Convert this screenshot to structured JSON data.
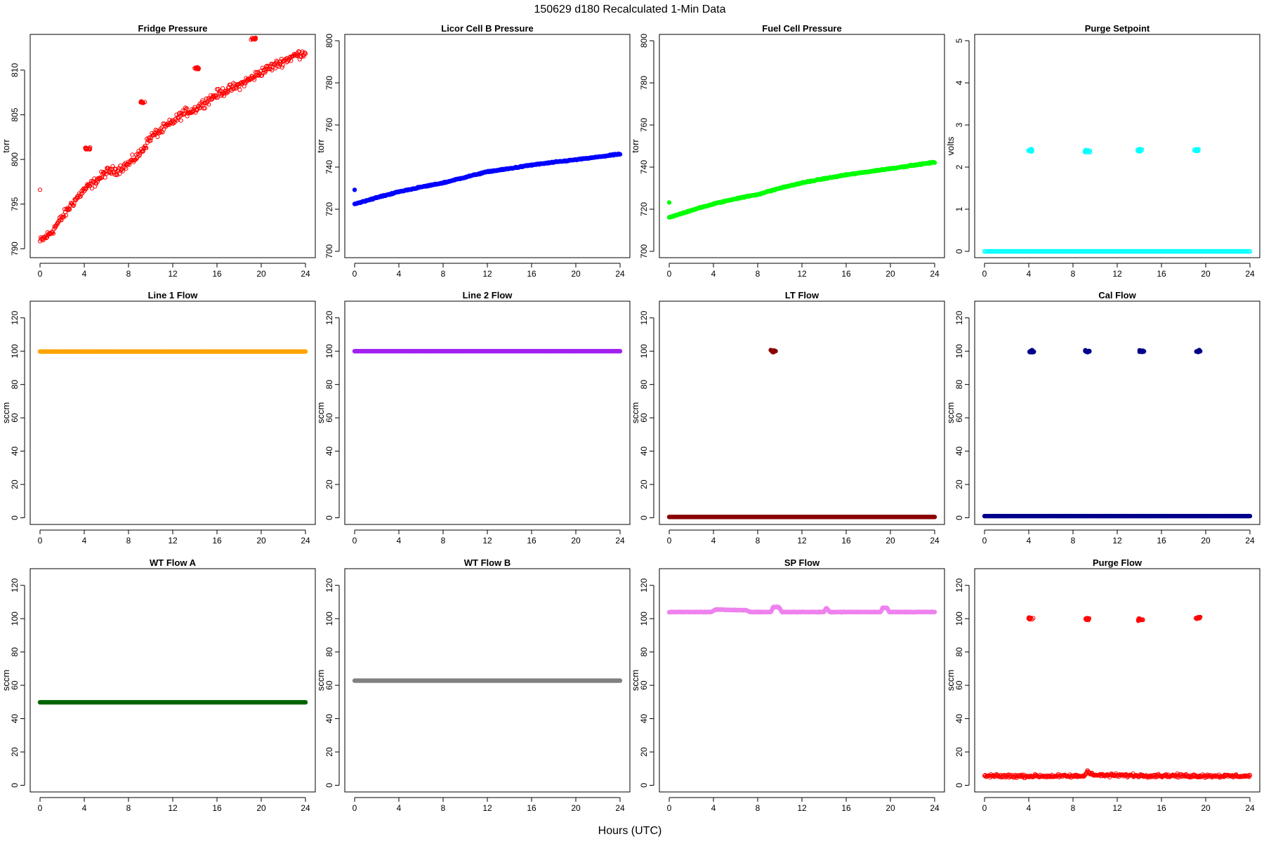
{
  "page": {
    "title": "150629    d180    Recalculated 1-Min Data",
    "xlabel": "Hours (UTC)"
  },
  "chart_data": [
    {
      "type": "scatter",
      "title": "Fridge Pressure",
      "ylabel": "torr",
      "color": "#ff0000",
      "xlim": [
        0,
        24
      ],
      "ylim": [
        789,
        814
      ],
      "yticks": [
        790,
        795,
        800,
        805,
        810
      ],
      "xticks": [
        0,
        4,
        8,
        12,
        16,
        20,
        24
      ],
      "curve": [
        [
          0,
          790.8
        ],
        [
          1,
          791.8
        ],
        [
          2,
          793.5
        ],
        [
          3,
          795.2
        ],
        [
          4,
          796.6
        ],
        [
          5,
          797.5
        ],
        [
          6,
          798.6
        ],
        [
          7,
          798.8
        ],
        [
          8,
          799.5
        ],
        [
          9,
          800.6
        ],
        [
          10,
          802.5
        ],
        [
          11,
          803.3
        ],
        [
          12,
          804.2
        ],
        [
          13,
          805.2
        ],
        [
          14,
          805.6
        ],
        [
          15,
          806.5
        ],
        [
          16,
          807.3
        ],
        [
          17,
          807.8
        ],
        [
          18,
          808.3
        ],
        [
          19,
          809.0
        ],
        [
          20,
          809.8
        ],
        [
          21,
          810.4
        ],
        [
          22,
          811.0
        ],
        [
          23,
          811.6
        ],
        [
          24,
          812.0
        ]
      ],
      "spread": 0.6,
      "clusters": [
        [
          4.3,
          801.2
        ],
        [
          9.3,
          806.4
        ],
        [
          14.2,
          810.2
        ],
        [
          19.3,
          813.5
        ]
      ],
      "outliers": [
        [
          0,
          796.6
        ]
      ],
      "outline": true,
      "size": 2.6
    },
    {
      "type": "scatter",
      "title": "Licor Cell B Pressure",
      "ylabel": "torr",
      "color": "#0000ff",
      "xlim": [
        0,
        24
      ],
      "ylim": [
        697,
        803
      ],
      "yticks": [
        700,
        720,
        740,
        760,
        780,
        800
      ],
      "xticks": [
        0,
        4,
        8,
        12,
        16,
        20,
        24
      ],
      "curve": [
        [
          0,
          722.5
        ],
        [
          2,
          725.5
        ],
        [
          4,
          728.3
        ],
        [
          6,
          730.5
        ],
        [
          8,
          732.5
        ],
        [
          10,
          735.2
        ],
        [
          12,
          737.8
        ],
        [
          14,
          739.3
        ],
        [
          16,
          741.0
        ],
        [
          18,
          742.3
        ],
        [
          20,
          743.5
        ],
        [
          22,
          744.8
        ],
        [
          24,
          746.2
        ]
      ],
      "spread": 0.3,
      "clusters": [],
      "outliers": [
        [
          0,
          729.2
        ]
      ],
      "outline": false,
      "size": 2.8
    },
    {
      "type": "scatter",
      "title": "Fuel Cell Pressure",
      "ylabel": "torr",
      "color": "#00ff00",
      "xlim": [
        0,
        24
      ],
      "ylim": [
        697,
        803
      ],
      "yticks": [
        700,
        720,
        740,
        760,
        780,
        800
      ],
      "xticks": [
        0,
        4,
        8,
        12,
        16,
        20,
        24
      ],
      "curve": [
        [
          0,
          716.0
        ],
        [
          2,
          719.5
        ],
        [
          4,
          722.5
        ],
        [
          6,
          725.0
        ],
        [
          8,
          727.0
        ],
        [
          10,
          730.0
        ],
        [
          12,
          732.5
        ],
        [
          14,
          734.5
        ],
        [
          16,
          736.3
        ],
        [
          18,
          737.8
        ],
        [
          20,
          739.3
        ],
        [
          22,
          740.8
        ],
        [
          24,
          742.3
        ]
      ],
      "spread": 0.3,
      "clusters": [],
      "outliers": [
        [
          0,
          723.2
        ]
      ],
      "outline": false,
      "size": 2.8
    },
    {
      "type": "scatter",
      "title": "Purge Setpoint",
      "ylabel": "volts",
      "color": "#00ffff",
      "xlim": [
        0,
        24
      ],
      "ylim": [
        -0.15,
        5.15
      ],
      "yticks": [
        0,
        1,
        2,
        3,
        4,
        5
      ],
      "xticks": [
        0,
        4,
        8,
        12,
        16,
        20,
        24
      ],
      "curve": [
        [
          0,
          0
        ],
        [
          24,
          0
        ]
      ],
      "spread": 0,
      "clusters": [
        [
          4.1,
          2.4
        ],
        [
          9.3,
          2.38
        ],
        [
          14.0,
          2.4
        ],
        [
          19.2,
          2.4
        ]
      ],
      "outliers": [],
      "outline": true,
      "size": 2.8
    },
    {
      "type": "scatter",
      "title": "Line 1 Flow",
      "ylabel": "sccm",
      "color": "#ffa500",
      "xlim": [
        0,
        24
      ],
      "ylim": [
        -4,
        130
      ],
      "yticks": [
        0,
        20,
        40,
        60,
        80,
        100,
        120
      ],
      "xticks": [
        0,
        4,
        8,
        12,
        16,
        20,
        24
      ],
      "curve": [
        [
          0,
          99.8
        ],
        [
          24,
          99.8
        ]
      ],
      "spread": 0,
      "clusters": [],
      "outliers": [],
      "outline": false,
      "size": 2.8
    },
    {
      "type": "scatter",
      "title": "Line 2 Flow",
      "ylabel": "sccm",
      "color": "#a020f0",
      "xlim": [
        0,
        24
      ],
      "ylim": [
        -4,
        130
      ],
      "yticks": [
        0,
        20,
        40,
        60,
        80,
        100,
        120
      ],
      "xticks": [
        0,
        4,
        8,
        12,
        16,
        20,
        24
      ],
      "curve": [
        [
          0,
          100
        ],
        [
          24,
          100
        ]
      ],
      "spread": 0,
      "clusters": [],
      "outliers": [],
      "outline": false,
      "size": 2.8
    },
    {
      "type": "scatter",
      "title": "LT Flow",
      "ylabel": "sccm",
      "color": "#8b0000",
      "xlim": [
        0,
        24
      ],
      "ylim": [
        -4,
        130
      ],
      "yticks": [
        0,
        20,
        40,
        60,
        80,
        100,
        120
      ],
      "xticks": [
        0,
        4,
        8,
        12,
        16,
        20,
        24
      ],
      "curve": [
        [
          0,
          0.5
        ],
        [
          24,
          0.5
        ]
      ],
      "spread": 0,
      "clusters": [
        [
          9.4,
          100
        ]
      ],
      "outliers": [],
      "outline": false,
      "size": 2.8
    },
    {
      "type": "scatter",
      "title": "Cal Flow",
      "ylabel": "sccm",
      "color": "#00008b",
      "xlim": [
        0,
        24
      ],
      "ylim": [
        -4,
        130
      ],
      "yticks": [
        0,
        20,
        40,
        60,
        80,
        100,
        120
      ],
      "xticks": [
        0,
        4,
        8,
        12,
        16,
        20,
        24
      ],
      "curve": [
        [
          0,
          1
        ],
        [
          24,
          1
        ]
      ],
      "spread": 0,
      "clusters": [
        [
          4.3,
          100
        ],
        [
          9.3,
          100
        ],
        [
          14.2,
          100
        ],
        [
          19.3,
          100
        ]
      ],
      "outliers": [],
      "outline": false,
      "size": 2.8
    },
    {
      "type": "scatter",
      "title": "WT Flow A",
      "ylabel": "sccm",
      "color": "#006400",
      "xlim": [
        0,
        24
      ],
      "ylim": [
        -4,
        130
      ],
      "yticks": [
        0,
        20,
        40,
        60,
        80,
        100,
        120
      ],
      "xticks": [
        0,
        4,
        8,
        12,
        16,
        20,
        24
      ],
      "curve": [
        [
          0,
          49.8
        ],
        [
          24,
          49.8
        ]
      ],
      "spread": 0,
      "clusters": [],
      "outliers": [],
      "outline": false,
      "size": 2.8
    },
    {
      "type": "scatter",
      "title": "WT Flow B",
      "ylabel": "sccm",
      "color": "#808080",
      "xlim": [
        0,
        24
      ],
      "ylim": [
        -4,
        130
      ],
      "yticks": [
        0,
        20,
        40,
        60,
        80,
        100,
        120
      ],
      "xticks": [
        0,
        4,
        8,
        12,
        16,
        20,
        24
      ],
      "curve": [
        [
          0,
          62.8
        ],
        [
          24,
          62.8
        ]
      ],
      "spread": 0,
      "clusters": [],
      "outliers": [],
      "outline": false,
      "size": 2.8
    },
    {
      "type": "scatter",
      "title": "SP Flow",
      "ylabel": "sccm",
      "color": "#ee82ee",
      "xlim": [
        0,
        24
      ],
      "ylim": [
        -4,
        130
      ],
      "yticks": [
        0,
        20,
        40,
        60,
        80,
        100,
        120
      ],
      "xticks": [
        0,
        4,
        8,
        12,
        16,
        20,
        24
      ],
      "curve": [
        [
          0,
          104
        ],
        [
          3.8,
          104
        ],
        [
          4.2,
          105.5
        ],
        [
          7,
          105
        ],
        [
          7.3,
          104
        ],
        [
          9.2,
          104
        ],
        [
          9.4,
          107
        ],
        [
          9.9,
          107
        ],
        [
          10.2,
          104
        ],
        [
          14,
          104
        ],
        [
          14.2,
          106.5
        ],
        [
          14.5,
          104
        ],
        [
          19.1,
          104
        ],
        [
          19.3,
          106.5
        ],
        [
          19.7,
          106.5
        ],
        [
          19.9,
          104
        ],
        [
          24,
          104
        ]
      ],
      "spread": 0.2,
      "clusters": [],
      "outliers": [],
      "outline": false,
      "size": 2.8
    },
    {
      "type": "scatter",
      "title": "Purge Flow",
      "ylabel": "sccm",
      "color": "#ff0000",
      "xlim": [
        0,
        24
      ],
      "ylim": [
        -4,
        130
      ],
      "yticks": [
        0,
        20,
        40,
        60,
        80,
        100,
        120
      ],
      "xticks": [
        0,
        4,
        8,
        12,
        16,
        20,
        24
      ],
      "curve": [
        [
          0,
          5.5
        ],
        [
          9,
          5.5
        ],
        [
          9.3,
          8.5
        ],
        [
          10,
          6
        ],
        [
          24,
          5.5
        ]
      ],
      "spread": 1.2,
      "clusters": [
        [
          4.2,
          100
        ],
        [
          9.3,
          100
        ],
        [
          14.1,
          99.5
        ],
        [
          19.3,
          100.5
        ]
      ],
      "outliers": [],
      "outline": true,
      "size": 2.6
    }
  ]
}
